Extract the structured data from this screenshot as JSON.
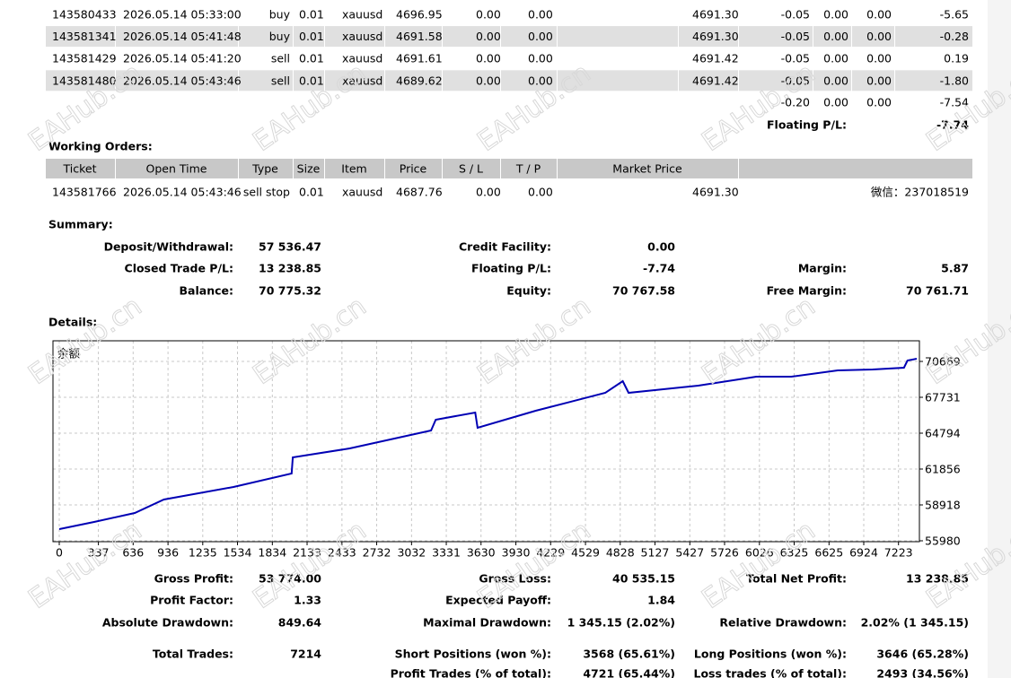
{
  "watermark": "EAHub.cn",
  "positions": {
    "rows": [
      [
        "143580433",
        "2026.05.14 05:33:00",
        "buy",
        "0.01",
        "xauusd",
        "4696.95",
        "0.00",
        "0.00",
        "4691.30",
        "-0.05",
        "0.00",
        "0.00",
        "-5.65"
      ],
      [
        "143581341",
        "2026.05.14 05:41:48",
        "buy",
        "0.01",
        "xauusd",
        "4691.58",
        "0.00",
        "0.00",
        "4691.30",
        "-0.05",
        "0.00",
        "0.00",
        "-0.28"
      ],
      [
        "143581429",
        "2026.05.14 05:41:20",
        "sell",
        "0.01",
        "xauusd",
        "4691.61",
        "0.00",
        "0.00",
        "4691.42",
        "-0.05",
        "0.00",
        "0.00",
        "0.19"
      ],
      [
        "143581480",
        "2026.05.14 05:43:46",
        "sell",
        "0.01",
        "xauusd",
        "4689.62",
        "0.00",
        "0.00",
        "4691.42",
        "-0.05",
        "0.00",
        "0.00",
        "-1.80"
      ]
    ],
    "totals": [
      "-0.20",
      "0.00",
      "0.00",
      "-7.54"
    ],
    "floating": {
      "label": "Floating P/L:",
      "value": "-7.74"
    }
  },
  "working_orders": {
    "title": "Working Orders:",
    "header": [
      "Ticket",
      "Open Time",
      "Type",
      "Size",
      "Item",
      "Price",
      "S / L",
      "T / P",
      "Market Price"
    ],
    "rows": [
      [
        "143581766",
        "2026.05.14 05:43:46",
        "sell stop",
        "0.01",
        "xauusd",
        "4687.76",
        "0.00",
        "0.00",
        "4691.30",
        "微信：237018519"
      ]
    ]
  },
  "summary": {
    "title": "Summary:",
    "rows": [
      [
        {
          "label": "Deposit/Withdrawal:",
          "value": "57 536.47"
        },
        {
          "label": "Credit Facility:",
          "value": "0.00"
        },
        null
      ],
      [
        {
          "label": "Closed Trade P/L:",
          "value": "13 238.85"
        },
        {
          "label": "Floating P/L:",
          "value": "-7.74"
        },
        {
          "label": "Margin:",
          "value": "5.87"
        }
      ],
      [
        {
          "label": "Balance:",
          "value": "70 775.32"
        },
        {
          "label": "Equity:",
          "value": "70 767.58"
        },
        {
          "label": "Free Margin:",
          "value": "70 761.71"
        }
      ]
    ]
  },
  "details": {
    "title": "Details:"
  },
  "chart_data": {
    "type": "line",
    "label": "余额",
    "color": "#0000b4",
    "grid": true,
    "x": [
      0,
      300,
      650,
      900,
      1500,
      2000,
      2010,
      2500,
      3200,
      3240,
      3580,
      3600,
      4100,
      4700,
      4850,
      4900,
      5500,
      6000,
      6300,
      6700,
      7000,
      7270,
      7300,
      7380
    ],
    "values": [
      56935,
      57522,
      58257,
      59358,
      60386,
      61488,
      62810,
      63544,
      65013,
      65894,
      66482,
      65233,
      66629,
      68098,
      69052,
      68098,
      68686,
      69420,
      69420,
      69934,
      70007,
      70154,
      70742,
      70889
    ],
    "xlim": [
      -54,
      7403
    ],
    "ylim": [
      55907,
      72358
    ],
    "xticks": [
      0,
      337,
      636,
      936,
      1235,
      1534,
      1834,
      2133,
      2433,
      2732,
      3032,
      3331,
      3630,
      3930,
      4229,
      4529,
      4828,
      5127,
      5427,
      5726,
      6026,
      6325,
      6625,
      6924,
      7223
    ],
    "yticks": [
      55980,
      58918,
      61856,
      64794,
      67731,
      70669
    ]
  },
  "stats": {
    "rows": [
      [
        {
          "label": "Gross Profit:",
          "value": "53 774.00"
        },
        {
          "label": "Gross Loss:",
          "value": "40 535.15"
        },
        {
          "label": "Total Net Profit:",
          "value": "13 238.85"
        }
      ],
      [
        {
          "label": "Profit Factor:",
          "value": "1.33"
        },
        {
          "label": "Expected Payoff:",
          "value": "1.84"
        },
        null
      ],
      [
        {
          "label": "Absolute Drawdown:",
          "value": "849.64"
        },
        {
          "label": "Maximal Drawdown:",
          "value": "1 345.15 (2.02%)"
        },
        {
          "label": "Relative Drawdown:",
          "value": "2.02% (1 345.15)"
        }
      ],
      [
        {
          "label": "Total Trades:",
          "value": "7214"
        },
        {
          "label": "Short Positions (won %):",
          "value": "3568 (65.61%)"
        },
        {
          "label": "Long Positions (won %):",
          "value": "3646 (65.28%)"
        }
      ],
      [
        null,
        {
          "label": "Profit Trades (% of total):",
          "value": "4721 (65.44%)"
        },
        {
          "label": "Loss trades (% of total):",
          "value": "2493 (34.56%)"
        }
      ]
    ]
  }
}
